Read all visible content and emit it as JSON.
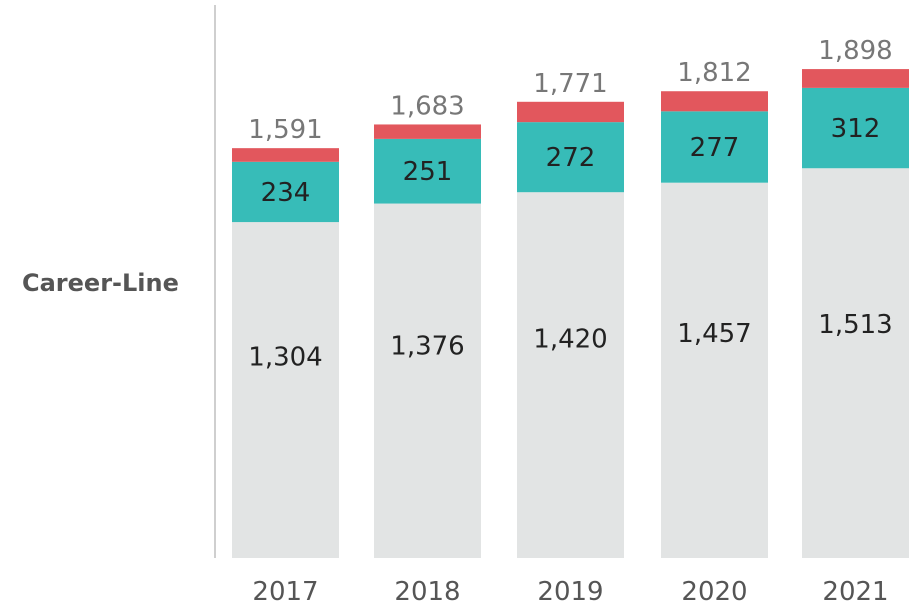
{
  "chart_data": {
    "type": "bar",
    "stacked": true,
    "row_label": "Career-Line",
    "categories": [
      "2017",
      "2018",
      "2019",
      "2020",
      "2021"
    ],
    "series": [
      {
        "values": [
          1304,
          1376,
          1420,
          1457,
          1513
        ],
        "color": "#e2e4e4"
      },
      {
        "values": [
          234,
          251,
          272,
          277,
          312
        ],
        "color": "#37bcb8"
      },
      {
        "values": [
          53,
          56,
          79,
          78,
          73
        ],
        "color": "#e2575d"
      }
    ],
    "segment_labels": [
      [
        "1,304",
        "1,376",
        "1,420",
        "1,457",
        "1,513"
      ],
      [
        "234",
        "251",
        "272",
        "277",
        "312"
      ]
    ],
    "totals": [
      1591,
      1683,
      1771,
      1812,
      1898
    ],
    "total_labels": [
      "1,591",
      "1,683",
      "1,771",
      "1,812",
      "1,898"
    ],
    "grid": false,
    "legend": "none"
  }
}
